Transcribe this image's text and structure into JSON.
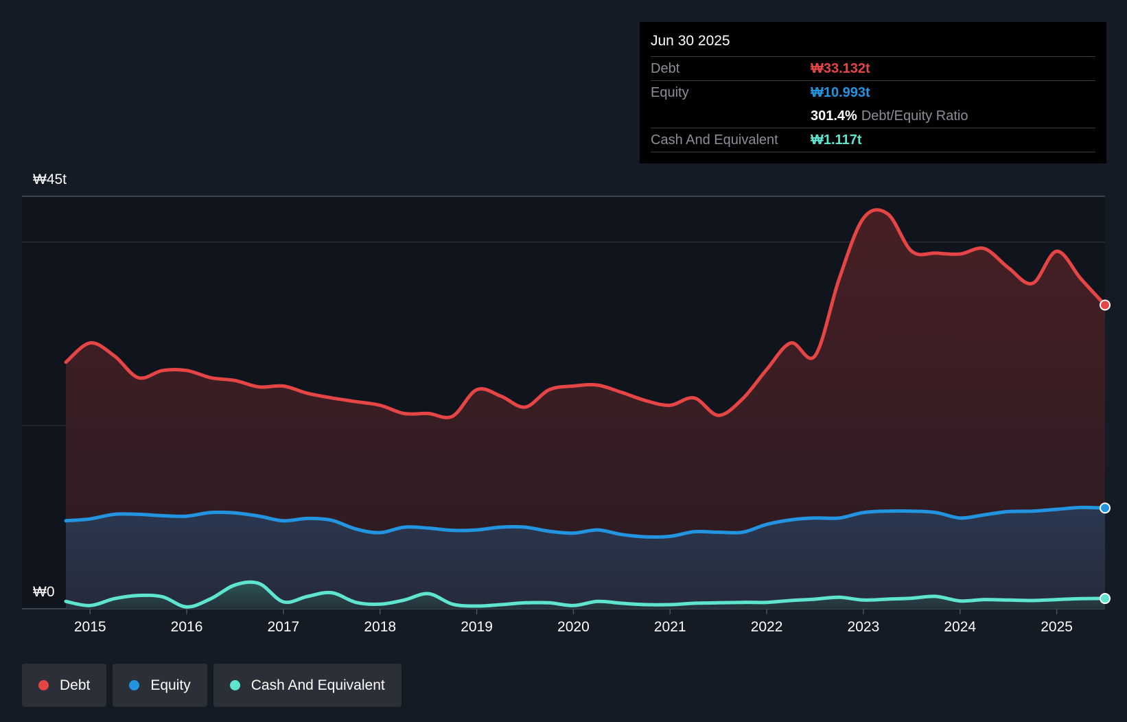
{
  "tooltip": {
    "date": "Jun 30 2025",
    "debt_label": "Debt",
    "debt_value": "₩33.132t",
    "equity_label": "Equity",
    "equity_value": "₩10.993t",
    "ratio_value": "301.4%",
    "ratio_label": "Debt/Equity Ratio",
    "cash_label": "Cash And Equivalent",
    "cash_value": "₩1.117t"
  },
  "colors": {
    "debt": "#e64545",
    "equity": "#2394df",
    "cash": "#5ee4cf",
    "background": "#151b24"
  },
  "legend": [
    {
      "label": "Debt",
      "color": "#e64545"
    },
    {
      "label": "Equity",
      "color": "#2394df"
    },
    {
      "label": "Cash And Equivalent",
      "color": "#5ee4cf"
    }
  ],
  "chart_data": {
    "type": "area",
    "title": "",
    "xlabel": "",
    "ylabel": "",
    "y_top_label": "₩45t",
    "y_bottom_label": "₩0",
    "ylim": [
      0,
      45
    ],
    "xlim": [
      2014.75,
      2025.5
    ],
    "x_ticks": [
      2015,
      2016,
      2017,
      2018,
      2019,
      2020,
      2021,
      2022,
      2023,
      2024,
      2025
    ],
    "x_tick_labels": [
      "2015",
      "2016",
      "2017",
      "2018",
      "2019",
      "2020",
      "2021",
      "2022",
      "2023",
      "2024",
      "2025"
    ],
    "gridlines": [
      0,
      20,
      40,
      45
    ],
    "series": [
      {
        "name": "Debt",
        "x": [
          2014.75,
          2015.0,
          2015.25,
          2015.5,
          2015.75,
          2016.0,
          2016.25,
          2016.5,
          2016.75,
          2017.0,
          2017.25,
          2017.5,
          2017.75,
          2018.0,
          2018.25,
          2018.5,
          2018.75,
          2019.0,
          2019.25,
          2019.5,
          2019.75,
          2020.0,
          2020.25,
          2020.5,
          2020.75,
          2021.0,
          2021.25,
          2021.5,
          2021.75,
          2022.0,
          2022.25,
          2022.5,
          2022.75,
          2023.0,
          2023.25,
          2023.5,
          2023.75,
          2024.0,
          2024.25,
          2024.5,
          2024.75,
          2025.0,
          2025.25,
          2025.5
        ],
        "values": [
          26.9,
          29.0,
          27.6,
          25.2,
          26.0,
          26.0,
          25.2,
          24.9,
          24.2,
          24.3,
          23.5,
          23.0,
          22.6,
          22.2,
          21.3,
          21.3,
          21.0,
          23.9,
          23.2,
          22.0,
          23.9,
          24.3,
          24.4,
          23.6,
          22.7,
          22.2,
          23.0,
          21.1,
          22.9,
          26.1,
          29.0,
          27.6,
          36.0,
          42.6,
          43.1,
          39.0,
          38.8,
          38.7,
          39.3,
          37.2,
          35.5,
          39.0,
          36.0,
          33.13
        ]
      },
      {
        "name": "Equity",
        "x": [
          2014.75,
          2015.0,
          2015.25,
          2015.5,
          2015.75,
          2016.0,
          2016.25,
          2016.5,
          2016.75,
          2017.0,
          2017.25,
          2017.5,
          2017.75,
          2018.0,
          2018.25,
          2018.5,
          2018.75,
          2019.0,
          2019.25,
          2019.5,
          2019.75,
          2020.0,
          2020.25,
          2020.5,
          2020.75,
          2021.0,
          2021.25,
          2021.5,
          2021.75,
          2022.0,
          2022.25,
          2022.5,
          2022.75,
          2023.0,
          2023.25,
          2023.5,
          2023.75,
          2024.0,
          2024.25,
          2024.5,
          2024.75,
          2025.0,
          2025.25,
          2025.5
        ],
        "values": [
          9.6,
          9.8,
          10.3,
          10.3,
          10.15,
          10.1,
          10.5,
          10.45,
          10.1,
          9.6,
          9.85,
          9.65,
          8.7,
          8.3,
          8.9,
          8.8,
          8.55,
          8.6,
          8.9,
          8.9,
          8.45,
          8.25,
          8.6,
          8.1,
          7.85,
          7.9,
          8.4,
          8.35,
          8.35,
          9.2,
          9.7,
          9.9,
          9.9,
          10.5,
          10.65,
          10.65,
          10.5,
          9.9,
          10.25,
          10.6,
          10.65,
          10.85,
          11.05,
          10.99
        ]
      },
      {
        "name": "Cash And Equivalent",
        "x": [
          2014.75,
          2015.0,
          2015.25,
          2015.5,
          2015.75,
          2016.0,
          2016.25,
          2016.5,
          2016.75,
          2017.0,
          2017.25,
          2017.5,
          2017.75,
          2018.0,
          2018.25,
          2018.5,
          2018.75,
          2019.0,
          2019.25,
          2019.5,
          2019.75,
          2020.0,
          2020.25,
          2020.5,
          2020.75,
          2021.0,
          2021.25,
          2021.5,
          2021.75,
          2022.0,
          2022.25,
          2022.5,
          2022.75,
          2023.0,
          2023.25,
          2023.5,
          2023.75,
          2024.0,
          2024.25,
          2024.5,
          2024.75,
          2025.0,
          2025.25,
          2025.5
        ],
        "values": [
          0.8,
          0.35,
          1.1,
          1.45,
          1.3,
          0.2,
          1.1,
          2.6,
          2.75,
          0.75,
          1.35,
          1.75,
          0.7,
          0.5,
          0.95,
          1.65,
          0.5,
          0.3,
          0.45,
          0.65,
          0.65,
          0.35,
          0.8,
          0.6,
          0.45,
          0.45,
          0.6,
          0.65,
          0.7,
          0.7,
          0.9,
          1.05,
          1.25,
          0.95,
          1.05,
          1.15,
          1.35,
          0.85,
          1.0,
          0.95,
          0.9,
          1.0,
          1.1,
          1.12
        ]
      }
    ]
  }
}
